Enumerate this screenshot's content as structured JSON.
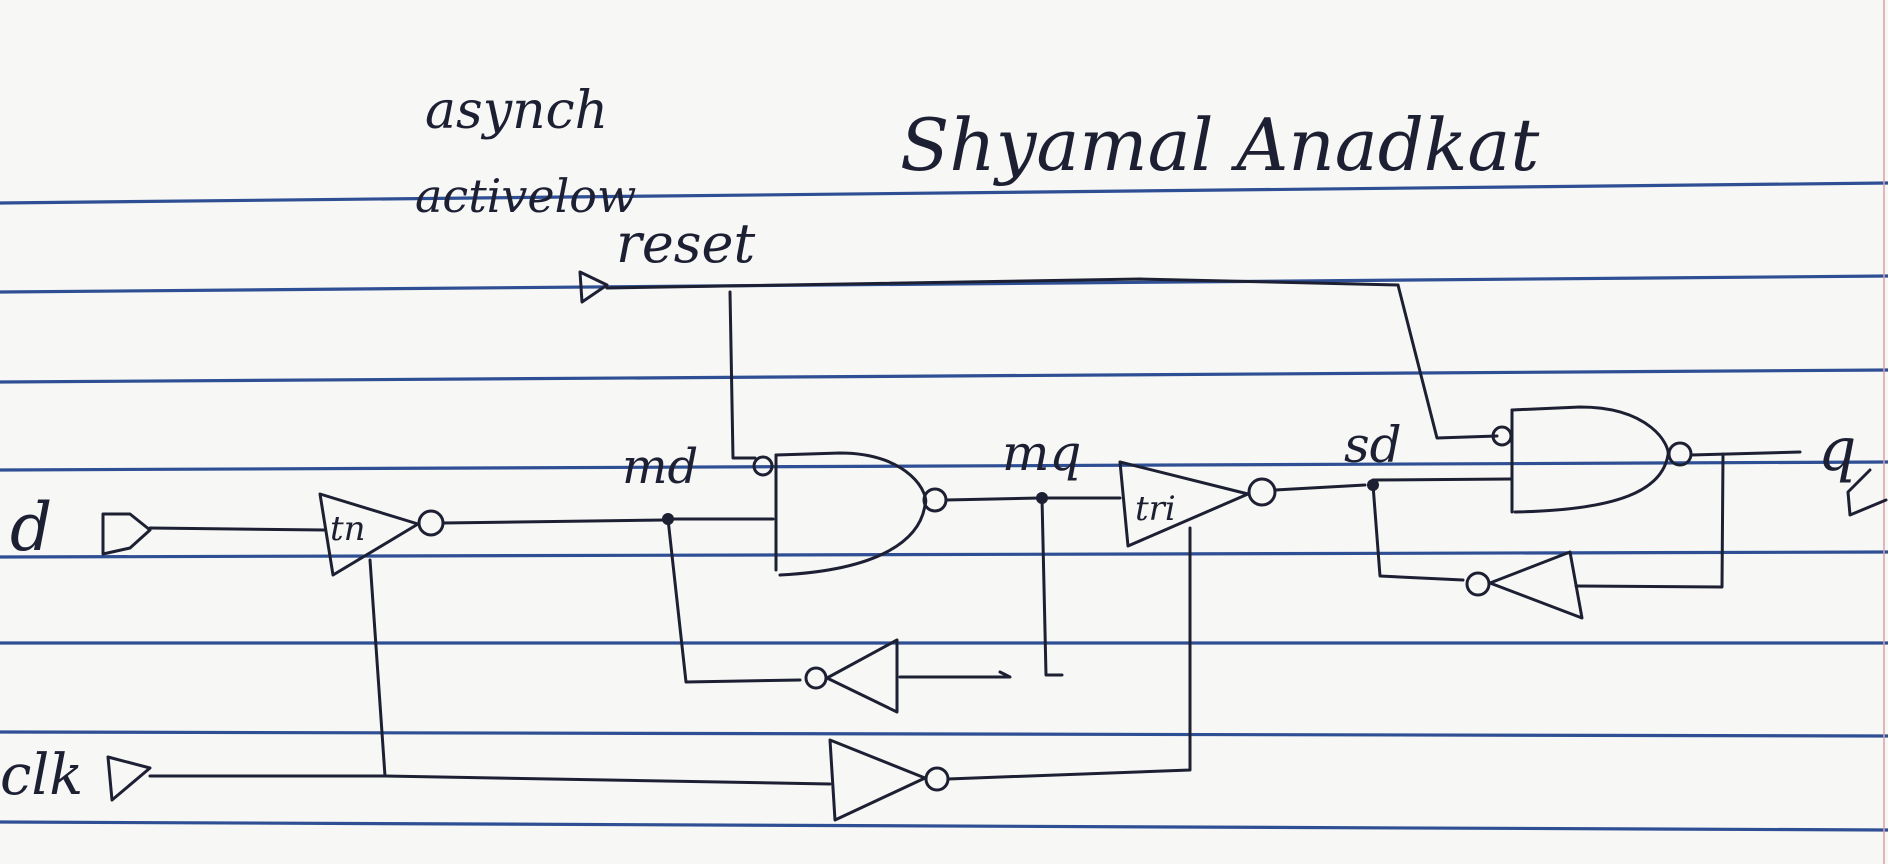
{
  "notes": {
    "reset_description_line1": "asynch",
    "reset_description_line2": "activelow",
    "author": "Shyamal Anadkat"
  },
  "ports": {
    "reset": "reset",
    "d": "d",
    "clk": "clk",
    "q": "q"
  },
  "nets": {
    "md": "md",
    "mq": "mq",
    "sd": "sd"
  },
  "gate_labels": {
    "input_tristate": "tn",
    "output_tristate": "tri"
  },
  "colors": {
    "ink": "#1d2033",
    "ruled_line": "#2f4f94",
    "paper": "#f7f7f5"
  }
}
